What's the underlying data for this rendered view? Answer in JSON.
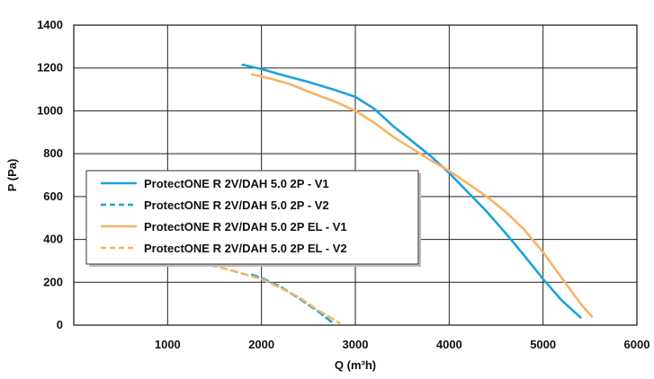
{
  "chart_data": {
    "type": "line",
    "title": "",
    "xlabel": "Q (m³h)",
    "ylabel": "P (Pa)",
    "xlim": [
      0,
      6000
    ],
    "ylim": [
      0,
      1400
    ],
    "xticks": [
      1000,
      2000,
      3000,
      4000,
      5000,
      6000
    ],
    "yticks": [
      0,
      200,
      400,
      600,
      800,
      1000,
      1200,
      1400
    ],
    "grid": true,
    "legend_position": "left-middle",
    "colors": {
      "blue": "#1ca3dc",
      "orange": "#f7b366"
    },
    "series": [
      {
        "name": "ProtectONE R 2V/DAH 5.0 2P - V1",
        "color": "#1ca3dc",
        "dash": "solid",
        "points": [
          [
            1800,
            1215
          ],
          [
            2000,
            1195
          ],
          [
            2200,
            1170
          ],
          [
            2500,
            1135
          ],
          [
            2800,
            1095
          ],
          [
            3000,
            1065
          ],
          [
            3200,
            1010
          ],
          [
            3400,
            930
          ],
          [
            3600,
            860
          ],
          [
            3800,
            790
          ],
          [
            4000,
            710
          ],
          [
            4200,
            620
          ],
          [
            4400,
            530
          ],
          [
            4600,
            430
          ],
          [
            4800,
            325
          ],
          [
            5000,
            215
          ],
          [
            5200,
            115
          ],
          [
            5400,
            35
          ]
        ]
      },
      {
        "name": "ProtectONE R 2V/DAH 5.0 2P - V2",
        "color": "#1ca3dc",
        "dash": "dashed",
        "points": [
          [
            1900,
            235
          ],
          [
            2000,
            220
          ],
          [
            2200,
            180
          ],
          [
            2400,
            125
          ],
          [
            2600,
            65
          ],
          [
            2760,
            10
          ]
        ]
      },
      {
        "name": "ProtectONE R 2V/DAH 5.0 2P EL - V1",
        "color": "#f7b366",
        "dash": "solid",
        "points": [
          [
            1900,
            1170
          ],
          [
            2100,
            1150
          ],
          [
            2300,
            1125
          ],
          [
            2500,
            1090
          ],
          [
            2800,
            1040
          ],
          [
            3000,
            1000
          ],
          [
            3200,
            945
          ],
          [
            3400,
            880
          ],
          [
            3600,
            825
          ],
          [
            3800,
            770
          ],
          [
            4000,
            720
          ],
          [
            4200,
            660
          ],
          [
            4400,
            600
          ],
          [
            4600,
            530
          ],
          [
            4800,
            445
          ],
          [
            5000,
            340
          ],
          [
            5200,
            220
          ],
          [
            5400,
            100
          ],
          [
            5520,
            40
          ]
        ]
      },
      {
        "name": "ProtectONE R 2V/DAH 5.0 2P EL - V2",
        "color": "#f7b366",
        "dash": "dashed",
        "points": [
          [
            1000,
            310
          ],
          [
            1200,
            300
          ],
          [
            1400,
            285
          ],
          [
            1600,
            265
          ],
          [
            1800,
            240
          ],
          [
            2000,
            215
          ],
          [
            2200,
            175
          ],
          [
            2400,
            130
          ],
          [
            2600,
            70
          ],
          [
            2830,
            10
          ]
        ]
      }
    ]
  }
}
